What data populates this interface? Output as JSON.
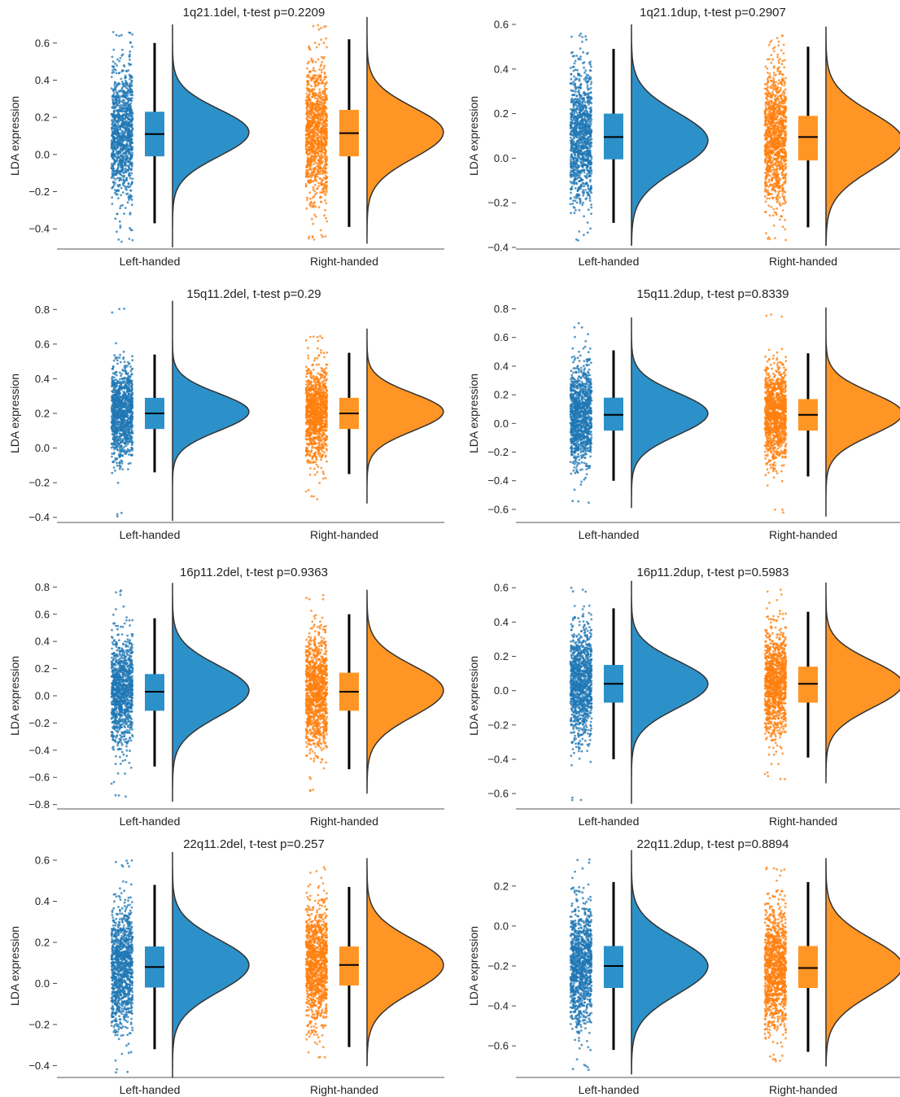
{
  "figure": {
    "ylabel": "LDA expression",
    "group_labels": [
      "Left-handed",
      "Right-handed"
    ]
  },
  "colors": {
    "left": "#1f77b4",
    "right": "#ff7f0e",
    "left_fill": "#2c91c9",
    "right_fill": "#ff9524",
    "outline": "#333333",
    "whisker": "#000000"
  },
  "chart_data": [
    {
      "type": "raincloud",
      "title": "1q21.1del, t-test p=0.2209",
      "ylabel": "LDA expression",
      "categories": [
        "Left-handed",
        "Right-handed"
      ],
      "yticks": [
        -0.4,
        -0.2,
        0.0,
        0.2,
        0.4,
        0.6
      ],
      "ylim": [
        -0.5,
        0.7
      ],
      "series": [
        {
          "q1": -0.01,
          "median": 0.11,
          "q3": 0.23,
          "whisker_low": -0.37,
          "whisker_high": 0.6,
          "min": -0.48,
          "max": 0.66,
          "peak": 0.12,
          "spread": 0.13
        },
        {
          "q1": -0.01,
          "median": 0.115,
          "q3": 0.24,
          "whisker_low": -0.39,
          "whisker_high": 0.62,
          "min": -0.46,
          "max": 0.7,
          "peak": 0.12,
          "spread": 0.14
        }
      ]
    },
    {
      "type": "raincloud",
      "title": "1q21.1dup, t-test p=0.2907",
      "ylabel": "LDA expression",
      "categories": [
        "Left-handed",
        "Right-handed"
      ],
      "yticks": [
        -0.4,
        -0.2,
        0.0,
        0.2,
        0.4,
        0.6
      ],
      "ylim": [
        -0.4,
        0.6
      ],
      "series": [
        {
          "q1": -0.005,
          "median": 0.095,
          "q3": 0.2,
          "whisker_low": -0.29,
          "whisker_high": 0.49,
          "min": -0.37,
          "max": 0.56,
          "peak": 0.08,
          "spread": 0.13
        },
        {
          "q1": -0.01,
          "median": 0.095,
          "q3": 0.19,
          "whisker_low": -0.31,
          "whisker_high": 0.5,
          "min": -0.37,
          "max": 0.55,
          "peak": 0.08,
          "spread": 0.13
        }
      ]
    },
    {
      "type": "raincloud",
      "title": "15q11.2del, t-test p=0.29",
      "ylabel": "LDA expression",
      "categories": [
        "Left-handed",
        "Right-handed"
      ],
      "yticks": [
        -0.4,
        -0.2,
        0.0,
        0.2,
        0.4,
        0.6,
        0.8
      ],
      "ylim": [
        -0.42,
        0.82
      ],
      "series": [
        {
          "q1": 0.11,
          "median": 0.2,
          "q3": 0.29,
          "whisker_low": -0.14,
          "whisker_high": 0.54,
          "min": -0.4,
          "max": 0.81,
          "peak": 0.21,
          "spread": 0.11
        },
        {
          "q1": 0.11,
          "median": 0.2,
          "q3": 0.29,
          "whisker_low": -0.15,
          "whisker_high": 0.55,
          "min": -0.3,
          "max": 0.65,
          "peak": 0.21,
          "spread": 0.11
        }
      ]
    },
    {
      "type": "raincloud",
      "title": "15q11.2dup, t-test p=0.8339",
      "ylabel": "LDA expression",
      "categories": [
        "Left-handed",
        "Right-handed"
      ],
      "yticks": [
        -0.6,
        -0.4,
        -0.2,
        0.0,
        0.2,
        0.4,
        0.6,
        0.8
      ],
      "ylim": [
        -0.68,
        0.82
      ],
      "series": [
        {
          "q1": -0.05,
          "median": 0.06,
          "q3": 0.18,
          "whisker_low": -0.4,
          "whisker_high": 0.51,
          "min": -0.57,
          "max": 0.7,
          "peak": 0.07,
          "spread": 0.15
        },
        {
          "q1": -0.05,
          "median": 0.06,
          "q3": 0.17,
          "whisker_low": -0.37,
          "whisker_high": 0.49,
          "min": -0.63,
          "max": 0.77,
          "peak": 0.07,
          "spread": 0.15
        }
      ]
    },
    {
      "type": "raincloud",
      "title": "16p11.2del, t-test p=0.9363",
      "ylabel": "LDA expression",
      "categories": [
        "Left-handed",
        "Right-handed"
      ],
      "yticks": [
        -0.8,
        -0.6,
        -0.4,
        -0.2,
        0.0,
        0.2,
        0.4,
        0.6,
        0.8
      ],
      "ylim": [
        -0.82,
        0.82
      ],
      "series": [
        {
          "q1": -0.11,
          "median": 0.03,
          "q3": 0.16,
          "whisker_low": -0.52,
          "whisker_high": 0.57,
          "min": -0.76,
          "max": 0.79,
          "peak": 0.04,
          "spread": 0.19
        },
        {
          "q1": -0.11,
          "median": 0.03,
          "q3": 0.17,
          "whisker_low": -0.54,
          "whisker_high": 0.6,
          "min": -0.7,
          "max": 0.74,
          "peak": 0.04,
          "spread": 0.19
        }
      ]
    },
    {
      "type": "raincloud",
      "title": "16p11.2dup, t-test p=0.5983",
      "ylabel": "LDA expression",
      "categories": [
        "Left-handed",
        "Right-handed"
      ],
      "yticks": [
        -0.6,
        -0.4,
        -0.2,
        0.0,
        0.2,
        0.4,
        0.6
      ],
      "ylim": [
        -0.68,
        0.62
      ],
      "series": [
        {
          "q1": -0.07,
          "median": 0.04,
          "q3": 0.15,
          "whisker_low": -0.4,
          "whisker_high": 0.48,
          "min": -0.64,
          "max": 0.6,
          "peak": 0.04,
          "spread": 0.14
        },
        {
          "q1": -0.07,
          "median": 0.04,
          "q3": 0.14,
          "whisker_low": -0.39,
          "whisker_high": 0.46,
          "min": -0.52,
          "max": 0.59,
          "peak": 0.04,
          "spread": 0.14
        }
      ]
    },
    {
      "type": "raincloud",
      "title": "22q11.2del, t-test p=0.257",
      "ylabel": "LDA expression",
      "categories": [
        "Left-handed",
        "Right-handed"
      ],
      "yticks": [
        -0.4,
        -0.2,
        0.0,
        0.2,
        0.4,
        0.6
      ],
      "ylim": [
        -0.45,
        0.62
      ],
      "series": [
        {
          "q1": -0.02,
          "median": 0.08,
          "q3": 0.18,
          "whisker_low": -0.32,
          "whisker_high": 0.48,
          "min": -0.44,
          "max": 0.6,
          "peak": 0.09,
          "spread": 0.13
        },
        {
          "q1": -0.01,
          "median": 0.09,
          "q3": 0.18,
          "whisker_low": -0.31,
          "whisker_high": 0.47,
          "min": -0.38,
          "max": 0.57,
          "peak": 0.09,
          "spread": 0.13
        }
      ]
    },
    {
      "type": "raincloud",
      "title": "22q11.2dup, t-test p=0.8894",
      "ylabel": "LDA expression",
      "categories": [
        "Left-handed",
        "Right-handed"
      ],
      "yticks": [
        -0.6,
        -0.4,
        -0.2,
        0.0,
        0.2
      ],
      "ylim": [
        -0.75,
        0.35
      ],
      "series": [
        {
          "q1": -0.31,
          "median": -0.2,
          "q3": -0.1,
          "whisker_low": -0.62,
          "whisker_high": 0.22,
          "min": -0.72,
          "max": 0.34,
          "peak": -0.2,
          "spread": 0.14
        },
        {
          "q1": -0.31,
          "median": -0.21,
          "q3": -0.1,
          "whisker_low": -0.63,
          "whisker_high": 0.22,
          "min": -0.68,
          "max": 0.3,
          "peak": -0.2,
          "spread": 0.14
        }
      ]
    }
  ]
}
